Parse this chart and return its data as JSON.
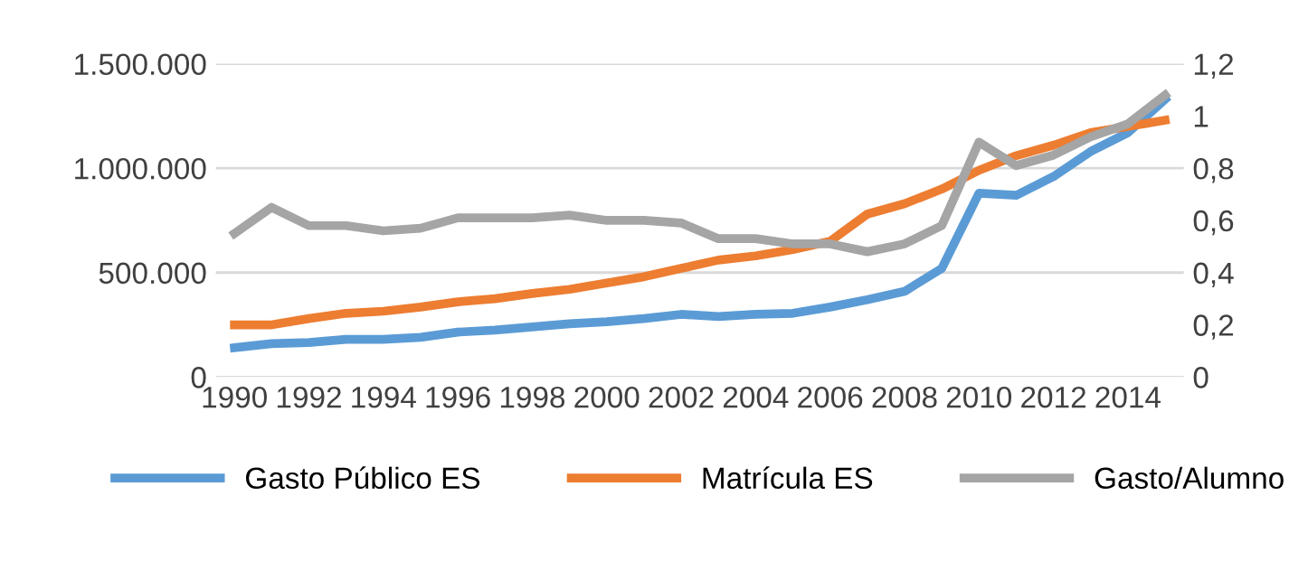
{
  "chart_data": {
    "type": "line",
    "categories": [
      "1990",
      null,
      "1992",
      null,
      "1994",
      null,
      "1996",
      null,
      "1998",
      null,
      "2000",
      null,
      "2002",
      null,
      "2004",
      null,
      "2006",
      null,
      "2008",
      null,
      "2010",
      null,
      "2012",
      null,
      "2014",
      null
    ],
    "series": [
      {
        "name": "Gasto Público ES",
        "color": "#5b9bd5",
        "values": [
          140000,
          160000,
          165000,
          180000,
          180000,
          190000,
          215000,
          225000,
          240000,
          255000,
          265000,
          280000,
          300000,
          290000,
          300000,
          305000,
          335000,
          370000,
          410000,
          520000,
          880000,
          870000,
          960000,
          1080000,
          1170000,
          1330000
        ]
      },
      {
        "name": "Matrícula ES",
        "color": "#ed7d31",
        "values": [
          250000,
          250000,
          280000,
          305000,
          315000,
          335000,
          360000,
          375000,
          400000,
          420000,
          450000,
          480000,
          520000,
          560000,
          580000,
          610000,
          650000,
          780000,
          830000,
          900000,
          990000,
          1060000,
          1110000,
          1170000,
          1200000,
          1230000
        ]
      },
      {
        "name": "Gasto/Alumno",
        "color": "#a5a5a5",
        "axis": "y2",
        "values": [
          0.55,
          0.65,
          0.58,
          0.58,
          0.56,
          0.57,
          0.61,
          0.61,
          0.61,
          0.62,
          0.6,
          0.6,
          0.59,
          0.53,
          0.53,
          0.51,
          0.51,
          0.48,
          0.51,
          0.58,
          0.9,
          0.81,
          0.85,
          0.92,
          0.97,
          1.08
        ]
      }
    ],
    "ylim": [
      0,
      1500000
    ],
    "yticks": [
      0,
      {
        "value": 500000,
        "label": "500.000"
      },
      {
        "value": 1000000,
        "label": "1.000.000"
      },
      {
        "value": 1500000,
        "label": "1.500.000"
      }
    ],
    "y2lim": [
      0,
      1.2
    ],
    "y2ticks": [
      0,
      {
        "value": 0.2,
        "label": "0,2"
      },
      {
        "value": 0.4,
        "label": "0,4"
      },
      {
        "value": 0.6,
        "label": "0,6"
      },
      {
        "value": 0.8,
        "label": "0,8"
      },
      1,
      {
        "value": 1.2,
        "label": "1,2"
      }
    ],
    "grid": "y",
    "legend": "bottom",
    "marker": "none",
    "line_style": "solid"
  }
}
